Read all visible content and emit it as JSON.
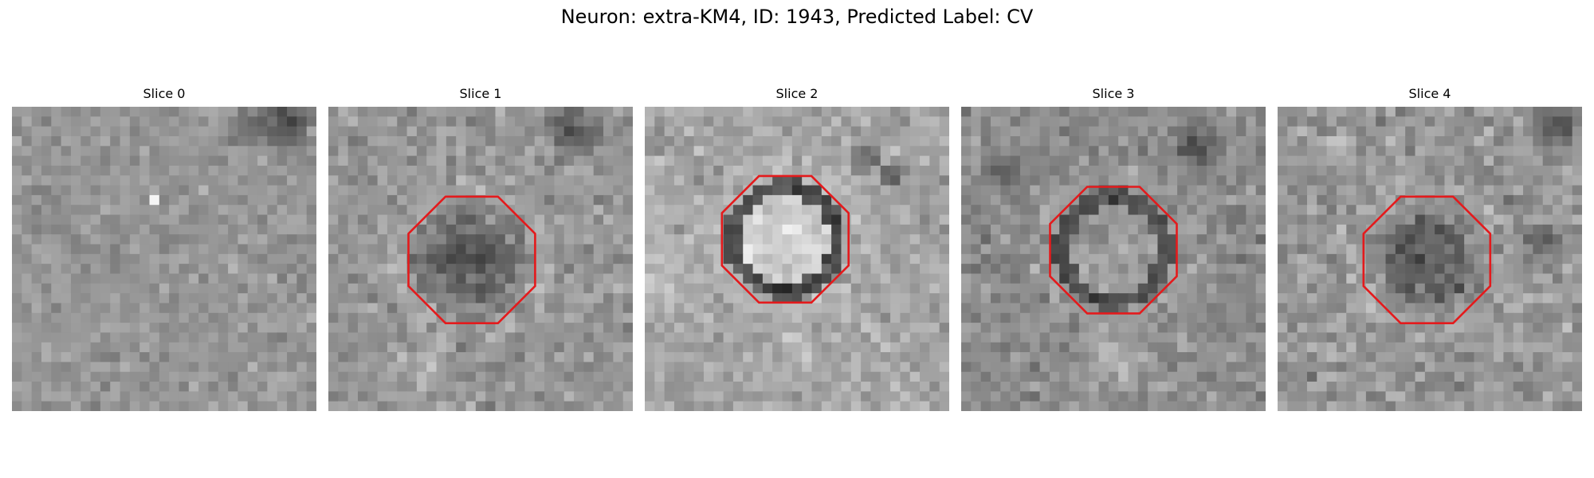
{
  "figure": {
    "title": "Neuron: extra-KM4, ID: 1943, Predicted Label: CV"
  },
  "outline_color": "#e41a1c",
  "colormap": "grayscale",
  "slices": [
    {
      "title": "Slice 0",
      "has_outline": false
    },
    {
      "title": "Slice 1",
      "has_outline": true
    },
    {
      "title": "Slice 2",
      "has_outline": true
    },
    {
      "title": "Slice 3",
      "has_outline": true
    },
    {
      "title": "Slice 4",
      "has_outline": true
    }
  ]
}
